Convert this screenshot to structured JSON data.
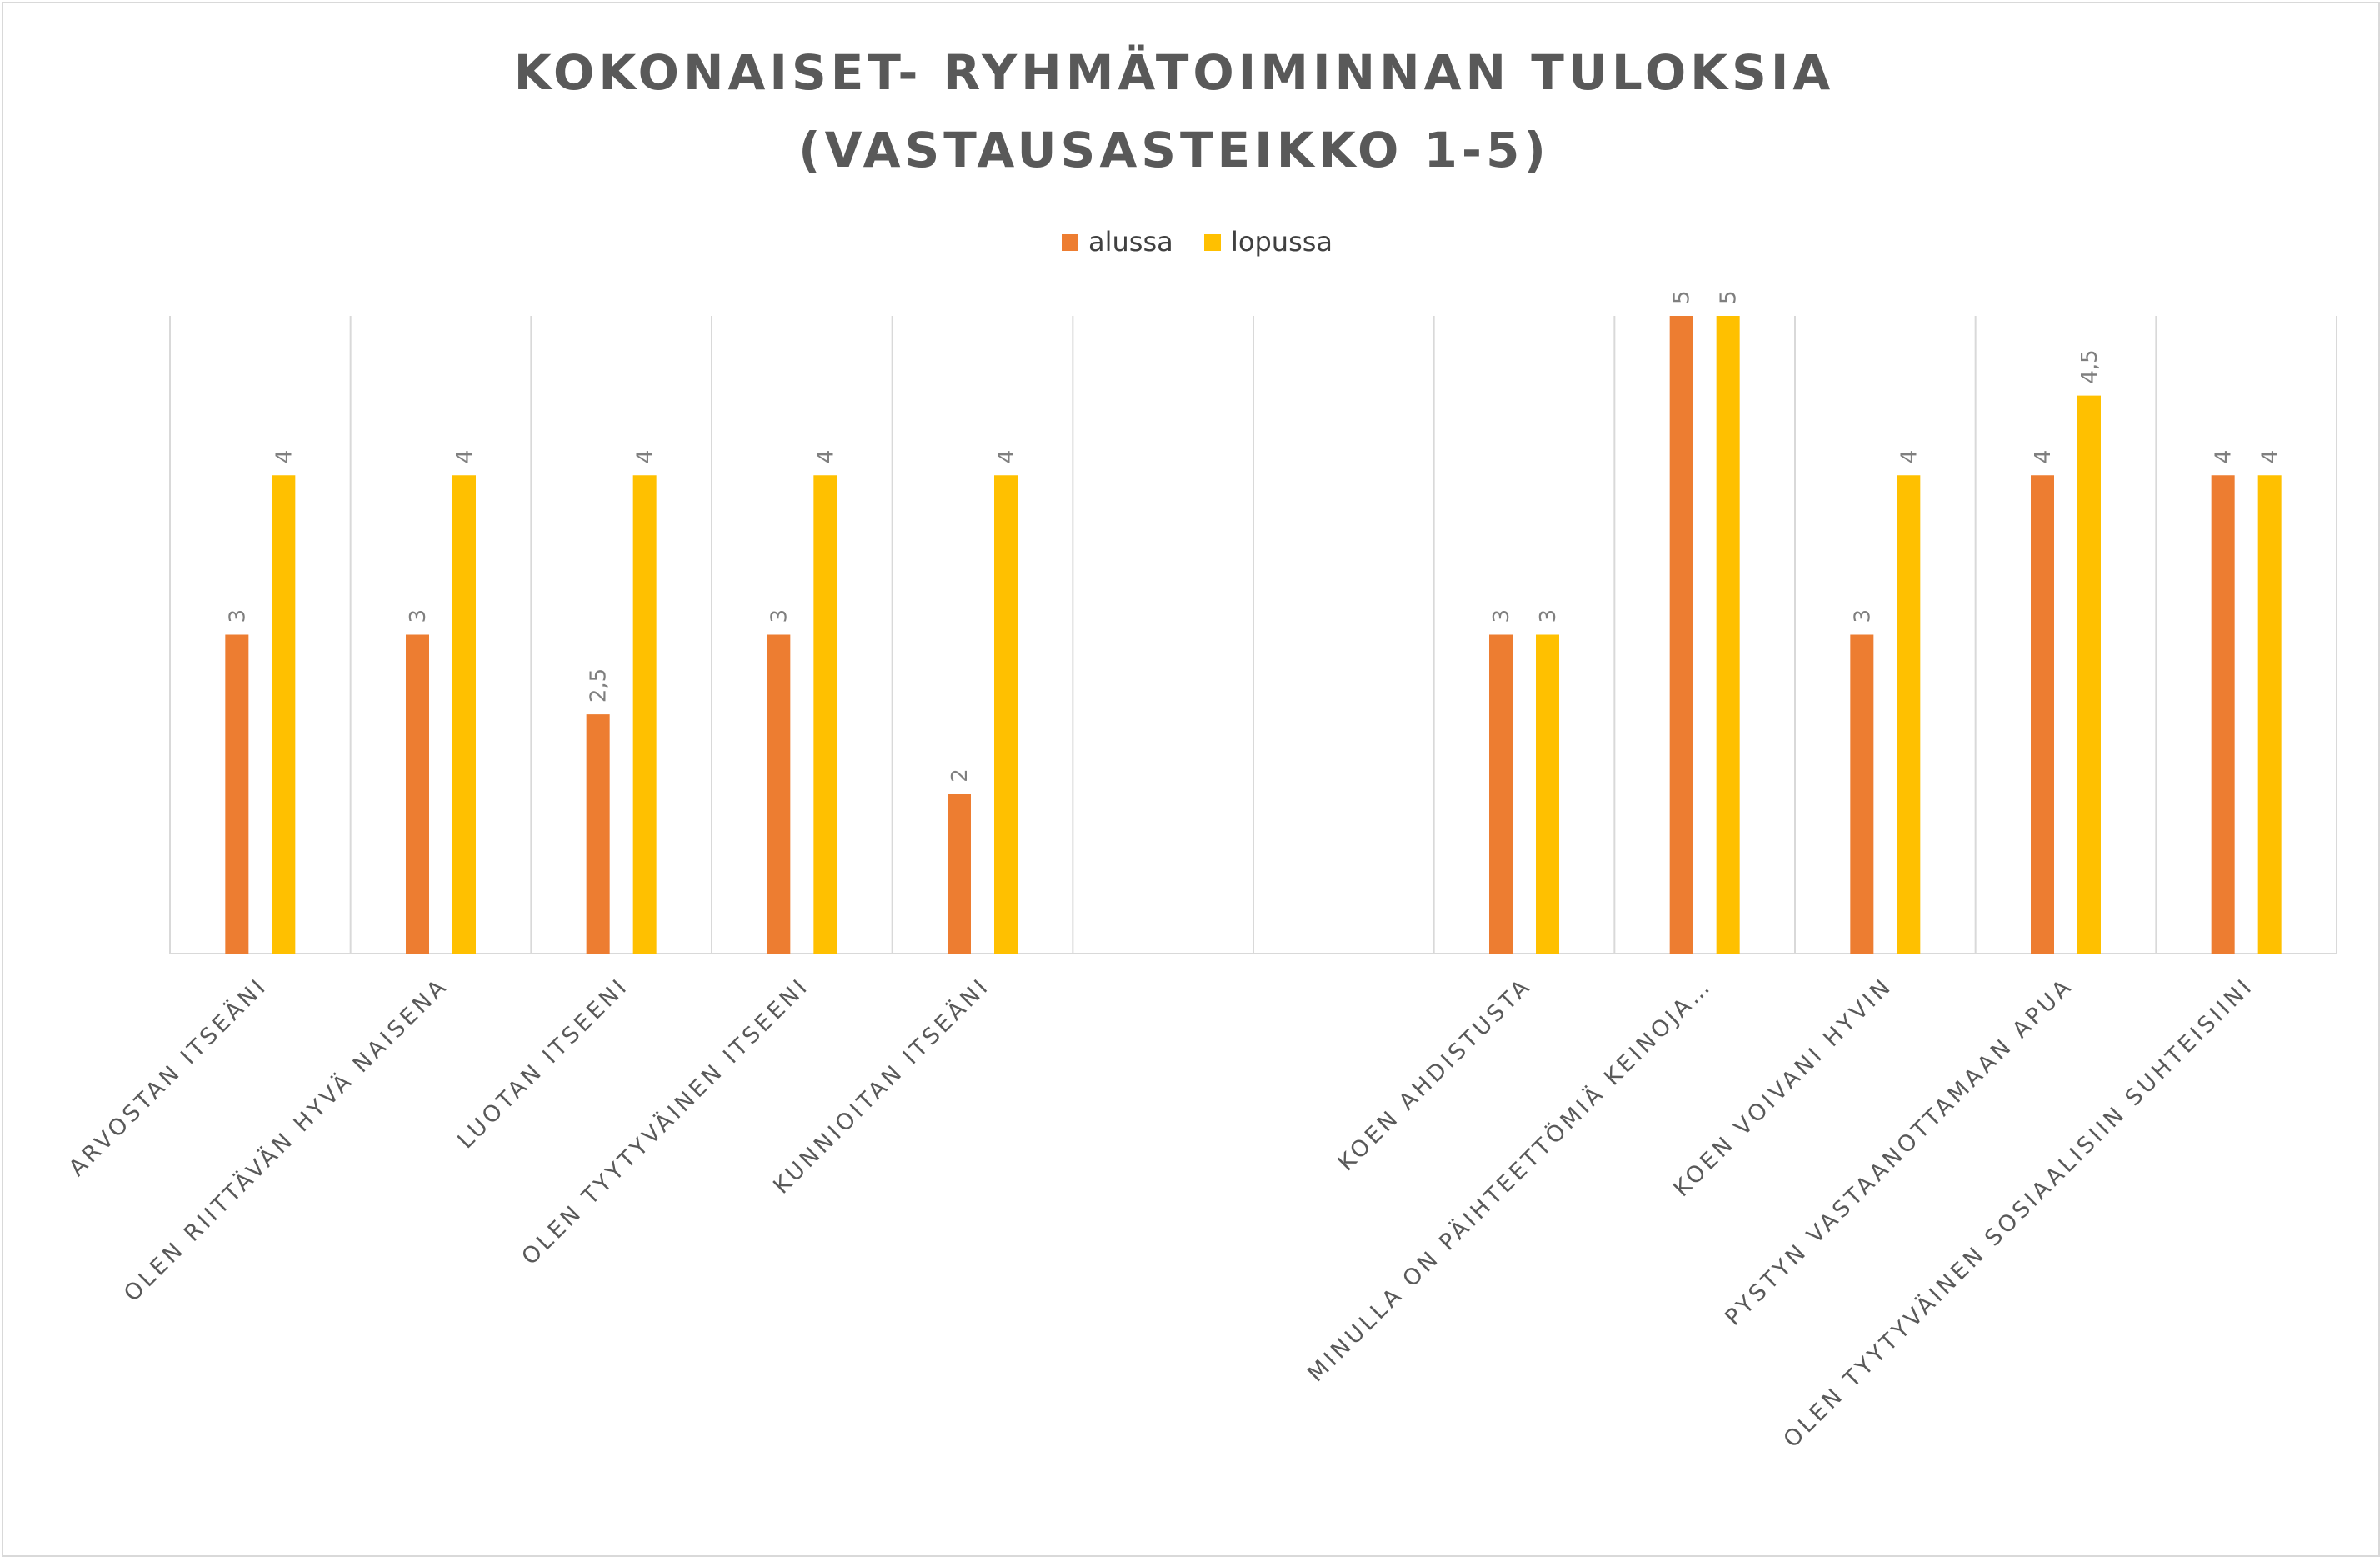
{
  "chart_data": {
    "type": "bar",
    "title_lines": [
      "KOKONAISET- RYHMÄTOIMINNAN TULOKSIA",
      "(VASTAUSASTEIKKO 1-5)"
    ],
    "categories": [
      "ARVOSTAN ITSEÄNI",
      "OLEN RIITTÄVÄN HYVÄ NAISENA",
      "LUOTAN ITSEENI",
      "OLEN TYYTYVÄINEN ITSEENI",
      "KUNNIOITAN ITSEÄNI",
      "",
      "",
      "KOEN AHDISTUSTA",
      "MINULLA ON PÄIHTEETTÖMIÄ KEINOJA…",
      "KOEN VOIVANI HYVIN",
      "PYSTYN VASTAANOTTAMAAN APUA",
      "OLEN TYYTYVÄINEN SOSIAALISIIN SUHTEISIINI"
    ],
    "series": [
      {
        "name": "alussa",
        "color": "#ED7D31",
        "values": [
          3,
          3,
          2.5,
          3,
          2,
          null,
          null,
          3,
          5,
          3,
          4,
          4
        ],
        "labels": [
          "3",
          "3",
          "2,5",
          "3",
          "2",
          "",
          "",
          "3",
          "5",
          "3",
          "4",
          "4"
        ]
      },
      {
        "name": "lopussa",
        "color": "#FFC000",
        "values": [
          4,
          4,
          4,
          4,
          4,
          null,
          null,
          3,
          5,
          4,
          4.5,
          4
        ],
        "labels": [
          "4",
          "4",
          "4",
          "4",
          "4",
          "",
          "",
          "3",
          "5",
          "4",
          "4,5",
          "4"
        ]
      }
    ],
    "ylim": [
      1,
      5
    ],
    "gridlines": "vertical category separators",
    "legend": "top-center"
  }
}
